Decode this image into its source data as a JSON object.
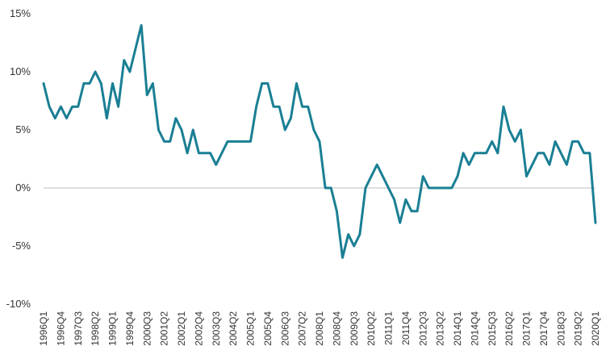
{
  "chart_data": {
    "type": "line",
    "title": "",
    "xlabel": "",
    "ylabel": "",
    "ylim": [
      -10,
      15
    ],
    "y_ticks": [
      "15%",
      "10%",
      "5%",
      "0%",
      "-5%",
      "-10%"
    ],
    "x_tick_labels": [
      "1996Q1",
      "1996Q4",
      "1997Q3",
      "1998Q2",
      "1999Q1",
      "1999Q4",
      "2000Q3",
      "2001Q2",
      "2002Q1",
      "2002Q4",
      "2003Q3",
      "2004Q2",
      "2005Q1",
      "2005Q4",
      "2006Q3",
      "2007Q2",
      "2008Q1",
      "2008Q4",
      "2009Q3",
      "2010Q2",
      "2011Q1",
      "2011Q4",
      "2012Q3",
      "2013Q2",
      "2014Q1",
      "2014Q4",
      "2015Q3",
      "2016Q2",
      "2017Q1",
      "2017Q4",
      "2018Q3",
      "2019Q2",
      "2020Q1"
    ],
    "grid": false,
    "zero_line": true,
    "colors": {
      "series": "#1a7f94",
      "zero_line": "#bfbfbf",
      "text": "#333333"
    },
    "series": [
      {
        "x": [
          "1996Q1",
          "1996Q2",
          "1996Q3",
          "1996Q4",
          "1997Q1",
          "1997Q2",
          "1997Q3",
          "1997Q4",
          "1998Q1",
          "1998Q2",
          "1998Q3",
          "1998Q4",
          "1999Q1",
          "1999Q2",
          "1999Q3",
          "1999Q4",
          "2000Q1",
          "2000Q2",
          "2000Q3",
          "2000Q4",
          "2001Q1",
          "2001Q2",
          "2001Q3",
          "2001Q4",
          "2002Q1",
          "2002Q2",
          "2002Q3",
          "2002Q4",
          "2003Q1",
          "2003Q2",
          "2003Q3",
          "2003Q4",
          "2004Q1",
          "2004Q2",
          "2004Q3",
          "2004Q4",
          "2005Q1",
          "2005Q2",
          "2005Q3",
          "2005Q4",
          "2006Q1",
          "2006Q2",
          "2006Q3",
          "2006Q4",
          "2007Q1",
          "2007Q2",
          "2007Q3",
          "2007Q4",
          "2008Q1",
          "2008Q2",
          "2008Q3",
          "2008Q4",
          "2009Q1",
          "2009Q2",
          "2009Q3",
          "2009Q4",
          "2010Q1",
          "2010Q2",
          "2010Q3",
          "2010Q4",
          "2011Q1",
          "2011Q2",
          "2011Q3",
          "2011Q4",
          "2012Q1",
          "2012Q2",
          "2012Q3",
          "2012Q4",
          "2013Q1",
          "2013Q2",
          "2013Q3",
          "2013Q4",
          "2014Q1",
          "2014Q2",
          "2014Q3",
          "2014Q4",
          "2015Q1",
          "2015Q2",
          "2015Q3",
          "2015Q4",
          "2016Q1",
          "2016Q2",
          "2016Q3",
          "2016Q4",
          "2017Q1",
          "2017Q2",
          "2017Q3",
          "2017Q4",
          "2018Q1",
          "2018Q2",
          "2018Q3",
          "2018Q4",
          "2019Q1",
          "2019Q2",
          "2019Q3",
          "2019Q4",
          "2020Q1"
        ],
        "values": [
          9,
          7,
          6,
          7,
          6,
          7,
          7,
          9,
          9,
          10,
          9,
          6,
          9,
          7,
          11,
          10,
          12,
          14,
          8,
          9,
          5,
          4,
          4,
          6,
          5,
          3,
          5,
          3,
          3,
          3,
          2,
          3,
          4,
          4,
          4,
          4,
          4,
          7,
          9,
          9,
          7,
          7,
          5,
          6,
          9,
          7,
          7,
          5,
          4,
          0,
          0,
          -2,
          -6,
          -4,
          -5,
          -4,
          0,
          1,
          2,
          1,
          0,
          -1,
          -3,
          -1,
          -2,
          -2,
          1,
          0,
          0,
          0,
          0,
          0,
          1,
          3,
          2,
          3,
          3,
          3,
          4,
          3,
          7,
          5,
          4,
          5,
          1,
          2,
          3,
          3,
          2,
          4,
          3,
          2,
          4,
          4,
          3,
          3,
          -3
        ]
      }
    ]
  }
}
